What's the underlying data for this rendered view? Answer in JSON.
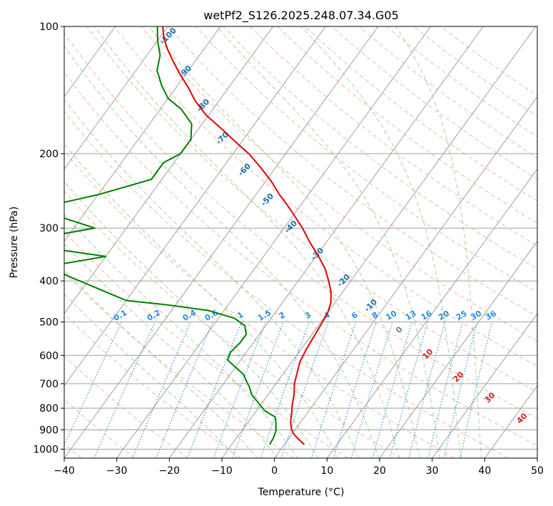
{
  "chart_data": {
    "type": "line",
    "title": "wetPf2_S126.2025.248.07.34.G05",
    "xlabel": "Temperature (°C)",
    "ylabel": "Pressure (hPa)",
    "xlim": [
      -40,
      50
    ],
    "ylim": [
      1050,
      100
    ],
    "y_scale": "log",
    "grid": true,
    "x_ticks": [
      -40,
      -30,
      -20,
      -10,
      0,
      10,
      20,
      30,
      40,
      50
    ],
    "y_ticks": [
      100,
      200,
      300,
      400,
      500,
      600,
      700,
      800,
      900,
      1000
    ],
    "colors": {
      "temperature": "#e00000",
      "dewpoint": "#008000",
      "isotherm": "#a0a0a0",
      "dry_adiabat": "#f4a582",
      "moist_adiabat": "#7fbf7b",
      "mixing_ratio": "#3a8fd8",
      "isotherm_label": "#1f6fa8",
      "mixing_ratio_label": "#2a8ae0",
      "positive_label": "#d02020"
    },
    "isotherm_labels": [
      "-100",
      "-90",
      "-80",
      "-70",
      "-60",
      "-50",
      "-40",
      "-30",
      "-20",
      "-10",
      "0",
      "10",
      "20",
      "30",
      "40"
    ],
    "mixing_ratio_labels": [
      "0.1",
      "0.2",
      "0.4",
      "0.6",
      "1",
      "1.5",
      "2",
      "3",
      "4",
      "6",
      "8",
      "10",
      "13",
      "16",
      "20",
      "25",
      "30",
      "36"
    ],
    "series": [
      {
        "name": "temperature",
        "points": [
          [
            3.8,
            975
          ],
          [
            1.5,
            940
          ],
          [
            0,
            915
          ],
          [
            -1,
            890
          ],
          [
            -2,
            860
          ],
          [
            -3,
            820
          ],
          [
            -4,
            785
          ],
          [
            -5,
            745
          ],
          [
            -6.5,
            700
          ],
          [
            -7.5,
            660
          ],
          [
            -8.5,
            620
          ],
          [
            -9,
            580
          ],
          [
            -9.3,
            545
          ],
          [
            -9.6,
            510
          ],
          [
            -10,
            475
          ],
          [
            -10.8,
            450
          ],
          [
            -12.2,
            425
          ],
          [
            -14.2,
            400
          ],
          [
            -16.5,
            375
          ],
          [
            -19.5,
            350
          ],
          [
            -23,
            325
          ],
          [
            -26.5,
            300
          ],
          [
            -29.8,
            280
          ],
          [
            -32.5,
            265
          ],
          [
            -35.5,
            250
          ],
          [
            -39,
            232
          ],
          [
            -43,
            215
          ],
          [
            -47,
            200
          ],
          [
            -51,
            188
          ],
          [
            -55.5,
            175
          ],
          [
            -60.5,
            162
          ],
          [
            -64.5,
            150
          ],
          [
            -67.5,
            140
          ],
          [
            -71,
            130
          ],
          [
            -74.5,
            120
          ],
          [
            -77,
            113
          ],
          [
            -79,
            107
          ],
          [
            -81,
            100
          ]
        ]
      },
      {
        "name": "dewpoint",
        "points": [
          [
            -2.8,
            975
          ],
          [
            -3,
            940
          ],
          [
            -3.5,
            905
          ],
          [
            -4.5,
            870
          ],
          [
            -5.5,
            840
          ],
          [
            -8.5,
            810
          ],
          [
            -10.5,
            780
          ],
          [
            -13,
            745
          ],
          [
            -14.5,
            715
          ],
          [
            -16,
            690
          ],
          [
            -17.5,
            665
          ],
          [
            -20,
            640
          ],
          [
            -22.5,
            615
          ],
          [
            -23,
            590
          ],
          [
            -22.5,
            560
          ],
          [
            -22.5,
            535
          ],
          [
            -24,
            510
          ],
          [
            -27,
            490
          ],
          [
            -33,
            470
          ],
          [
            -42,
            455
          ],
          [
            -50,
            445
          ],
          [
            -70,
            370
          ],
          [
            -60,
            350
          ],
          [
            -80,
            325
          ],
          [
            -66,
            300
          ],
          [
            -80,
            270
          ],
          [
            -70,
            250
          ],
          [
            -62,
            230
          ],
          [
            -62,
            210
          ],
          [
            -60,
            200
          ],
          [
            -60,
            185
          ],
          [
            -62,
            170
          ],
          [
            -66,
            157
          ],
          [
            -70,
            148
          ],
          [
            -73,
            138
          ],
          [
            -76,
            127
          ],
          [
            -77.5,
            117
          ],
          [
            -80,
            108
          ],
          [
            -82,
            100
          ]
        ]
      }
    ]
  }
}
